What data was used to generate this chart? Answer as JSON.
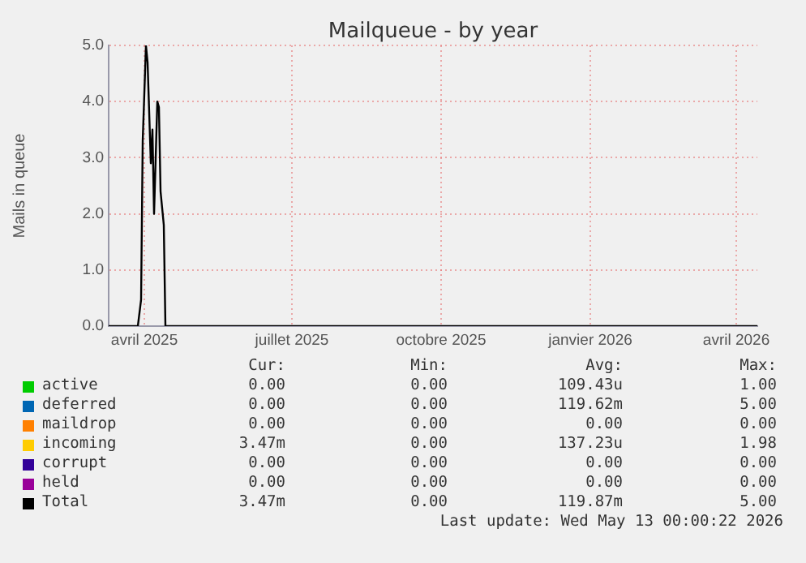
{
  "chart_data": {
    "type": "line",
    "title": "Mailqueue - by year",
    "ylabel": "Mails in queue",
    "x": [
      "2025-03-10",
      "2025-03-28",
      "2025-03-30",
      "2025-03-31",
      "2025-04-02",
      "2025-04-03",
      "2025-04-05",
      "2025-04-06",
      "2025-04-07",
      "2025-04-09",
      "2025-04-10",
      "2025-04-11",
      "2025-04-13",
      "2025-04-14",
      "2026-04-14"
    ],
    "series": [
      {
        "name": "active",
        "color": "#00cc00",
        "values": [
          null,
          null,
          null,
          null,
          null,
          null,
          null,
          null,
          null,
          null,
          null,
          null,
          null,
          null,
          null
        ]
      },
      {
        "name": "deferred",
        "color": "#0066b3",
        "values": [
          null,
          null,
          null,
          null,
          null,
          null,
          null,
          null,
          null,
          null,
          null,
          null,
          null,
          null,
          null
        ]
      },
      {
        "name": "maildrop",
        "color": "#ff8000",
        "values": [
          null,
          null,
          null,
          null,
          null,
          null,
          null,
          null,
          null,
          null,
          null,
          null,
          null,
          null,
          null
        ]
      },
      {
        "name": "incoming",
        "color": "#ffcc00",
        "values": [
          null,
          null,
          null,
          null,
          null,
          null,
          null,
          null,
          null,
          null,
          null,
          null,
          null,
          null,
          null
        ]
      },
      {
        "name": "corrupt",
        "color": "#330099",
        "values": [
          null,
          null,
          null,
          null,
          null,
          null,
          null,
          null,
          null,
          null,
          null,
          null,
          null,
          null,
          null
        ]
      },
      {
        "name": "held",
        "color": "#990099",
        "values": [
          null,
          null,
          null,
          null,
          null,
          null,
          null,
          null,
          null,
          null,
          null,
          null,
          null,
          null,
          null
        ]
      },
      {
        "name": "Total",
        "color": "#000000",
        "values": [
          0,
          0,
          0.47,
          3.3,
          5.0,
          4.7,
          2.9,
          3.5,
          2.0,
          4.0,
          3.9,
          2.4,
          1.8,
          0,
          0
        ]
      }
    ],
    "xlim": [
      "2025-03-10",
      "2026-04-14"
    ],
    "xticks": [
      {
        "value": "2025-04-01",
        "label": "avril 2025"
      },
      {
        "value": "2025-07-01",
        "label": "juillet 2025"
      },
      {
        "value": "2025-10-01",
        "label": "octobre 2025"
      },
      {
        "value": "2026-01-01",
        "label": "janvier 2026"
      },
      {
        "value": "2026-04-01",
        "label": "avril 2026"
      }
    ],
    "ylim": [
      0,
      5
    ],
    "yticks": [
      {
        "value": 0,
        "label": "0.0"
      },
      {
        "value": 1,
        "label": "1.0"
      },
      {
        "value": 2,
        "label": "2.0"
      },
      {
        "value": 3,
        "label": "3.0"
      },
      {
        "value": 4,
        "label": "4.0"
      },
      {
        "value": 5,
        "label": "5.0"
      }
    ],
    "grid": true,
    "legend": "bottom",
    "marker": "none",
    "line_style": "solid",
    "annotations": [
      "Cur:",
      "Min:",
      "Avg:",
      "Max:",
      "0.00",
      "0.00",
      "109.43u",
      "1.00",
      "0.00",
      "0.00",
      "119.62m",
      "5.00",
      "0.00",
      "0.00",
      "0.00",
      "0.00",
      "3.47m",
      "0.00",
      "137.23u",
      "1.98",
      "0.00",
      "0.00",
      "0.00",
      "0.00",
      "0.00",
      "0.00",
      "0.00",
      "0.00",
      "3.47m",
      "0.00",
      "119.87m",
      "5.00",
      "Last update: Wed May 13 00:00:22 2026"
    ]
  }
}
